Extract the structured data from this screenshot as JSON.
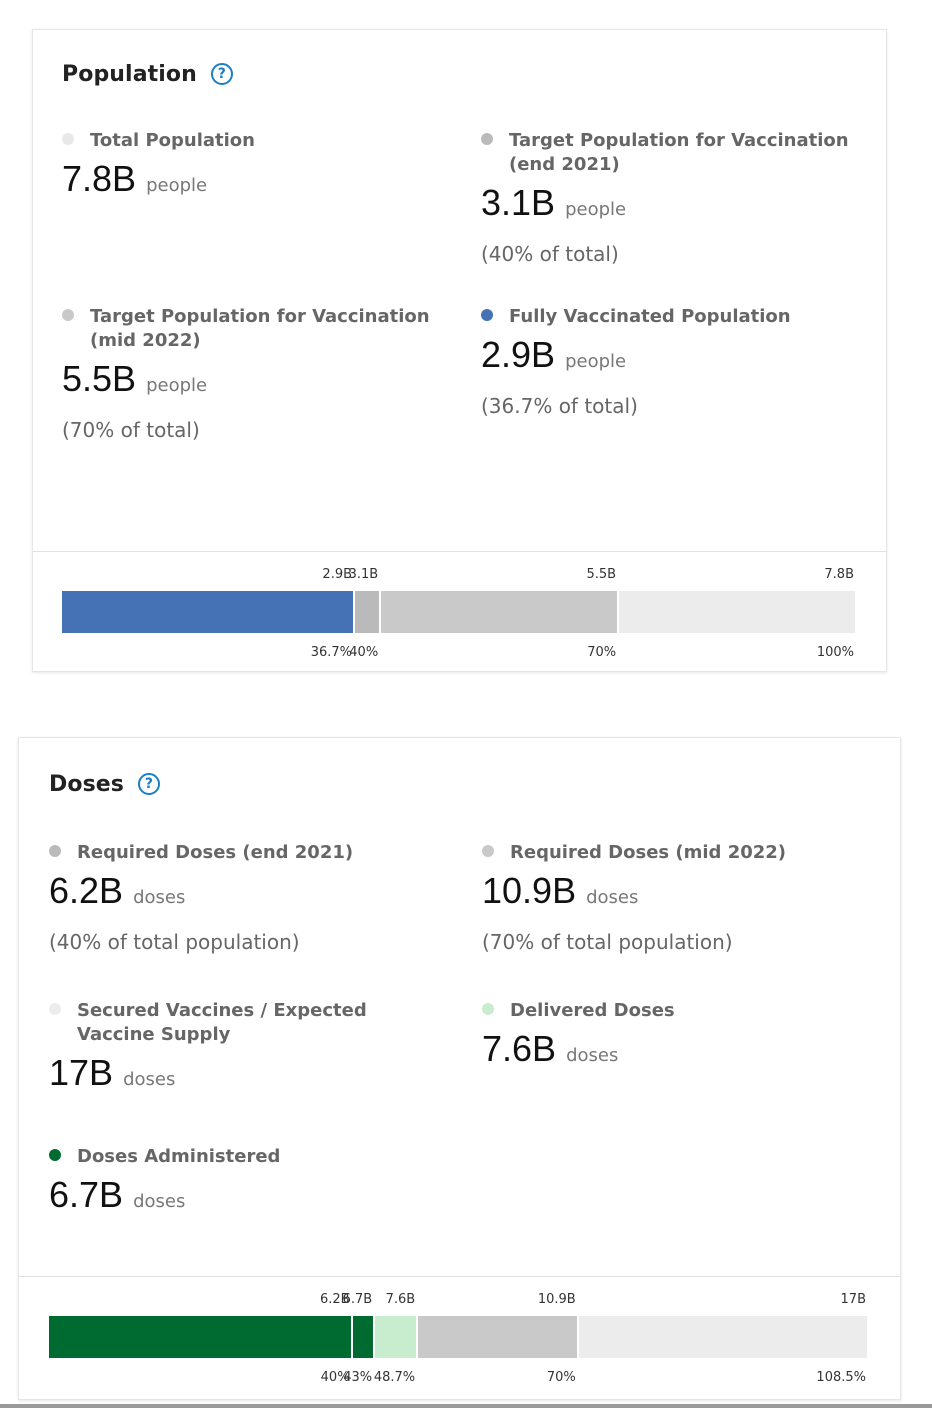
{
  "population": {
    "title": "Population",
    "help_icon": "question-circle-icon",
    "stats": [
      {
        "label": "Total Population",
        "value": "7.8B",
        "unit": "people",
        "sub": "",
        "dot_color": "#e8e8e8"
      },
      {
        "label": "Target Population for Vaccination (end 2021)",
        "value": "3.1B",
        "unit": "people",
        "sub": "(40% of total)",
        "dot_color": "#bababa"
      },
      {
        "label": "Target Population for Vaccination (mid 2022)",
        "value": "5.5B",
        "unit": "people",
        "sub": "(70% of total)",
        "dot_color": "#c9c9c9"
      },
      {
        "label": "Fully Vaccinated Population",
        "value": "2.9B",
        "unit": "people",
        "sub": "(36.7% of total)",
        "dot_color": "#4472b4"
      }
    ],
    "bar": {
      "max_percent": 100,
      "segments": [
        {
          "name": "fully-vaccinated",
          "percent": 36.7,
          "top_label": "2.9B",
          "bottom_label": "36.7%",
          "color": "#4472b4"
        },
        {
          "name": "target-end-2021",
          "percent": 40,
          "top_label": "3.1B",
          "bottom_label": "40%",
          "color": "#bababa"
        },
        {
          "name": "target-mid-2022",
          "percent": 70,
          "top_label": "5.5B",
          "bottom_label": "70%",
          "color": "#c9c9c9"
        },
        {
          "name": "total-population",
          "percent": 100,
          "top_label": "7.8B",
          "bottom_label": "100%",
          "color": "#ececec"
        }
      ]
    }
  },
  "doses": {
    "title": "Doses",
    "help_icon": "question-circle-icon",
    "stats": [
      {
        "label": "Required Doses (end 2021)",
        "value": "6.2B",
        "unit": "doses",
        "sub": "(40% of total population)",
        "dot_color": "#bababa"
      },
      {
        "label": "Required Doses (mid 2022)",
        "value": "10.9B",
        "unit": "doses",
        "sub": "(70% of total population)",
        "dot_color": "#c9c9c9"
      },
      {
        "label": "Secured Vaccines / Expected Vaccine Supply",
        "value": "17B",
        "unit": "doses",
        "sub": "",
        "dot_color": "#ececec"
      },
      {
        "label": "Delivered Doses",
        "value": "7.6B",
        "unit": "doses",
        "sub": "",
        "dot_color": "#c8ecce"
      },
      {
        "label": "Doses Administered",
        "value": "6.7B",
        "unit": "doses",
        "sub": "",
        "dot_color": "#006b31"
      }
    ],
    "bar": {
      "max_percent": 108.5,
      "segments": [
        {
          "name": "required-end-2021",
          "percent": 40,
          "top_label": "6.2B",
          "bottom_label": "40%",
          "color": "#006b31"
        },
        {
          "name": "doses-administered",
          "percent": 43,
          "top_label": "6.7B",
          "bottom_label": "43%",
          "color": "#006b31"
        },
        {
          "name": "delivered-doses",
          "percent": 48.7,
          "top_label": "7.6B",
          "bottom_label": "48.7%",
          "color": "#c8ecce"
        },
        {
          "name": "required-mid-2022",
          "percent": 70,
          "top_label": "10.9B",
          "bottom_label": "70%",
          "color": "#c9c9c9"
        },
        {
          "name": "secured-supply",
          "percent": 108.5,
          "top_label": "17B",
          "bottom_label": "108.5%",
          "color": "#ececec"
        }
      ]
    }
  }
}
